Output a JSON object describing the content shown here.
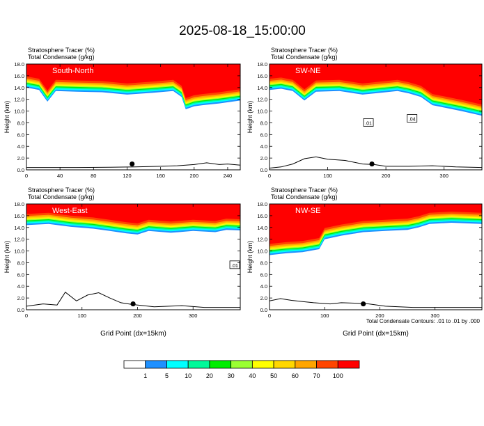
{
  "figure": {
    "title": "2025-08-18_15:00:00",
    "contour_note": "Total Condensate Contours: .01 to .01 by .000"
  },
  "colorbar": {
    "levels": [
      "1",
      "5",
      "10",
      "20",
      "30",
      "40",
      "50",
      "60",
      "70",
      "100"
    ],
    "colors": [
      "#ffffff",
      "#1e90ff",
      "#00ffff",
      "#00fa9a",
      "#00ee00",
      "#9aff32",
      "#ffff00",
      "#ffd700",
      "#ffa500",
      "#ff4500",
      "#ff0000"
    ]
  },
  "chart_data": [
    {
      "type": "contour",
      "label": "South-North",
      "title_line1": "Stratosphere Tracer   (%)",
      "title_line2": "Total Condensate   (g/kg)",
      "ylabel": "Height (km)",
      "xlabel": "",
      "xlim": [
        0,
        255
      ],
      "ylim": [
        0,
        18
      ],
      "xticks": [
        "0",
        "40",
        "80",
        "120",
        "160",
        "200",
        "240"
      ],
      "yticks": [
        "0.0",
        "2.0",
        "4.0",
        "6.0",
        "8.0",
        "10.0",
        "12.0",
        "14.0",
        "16.0",
        "18.0"
      ],
      "marker": {
        "x": 126,
        "y": 1.0
      },
      "tropopause": [
        [
          0,
          14.2
        ],
        [
          15,
          13.8
        ],
        [
          25,
          11.8
        ],
        [
          35,
          13.6
        ],
        [
          60,
          13.5
        ],
        [
          90,
          13.4
        ],
        [
          120,
          13.0
        ],
        [
          150,
          13.3
        ],
        [
          175,
          13.6
        ],
        [
          185,
          12.6
        ],
        [
          190,
          10.5
        ],
        [
          200,
          11.0
        ],
        [
          210,
          11.2
        ],
        [
          230,
          11.5
        ],
        [
          255,
          12.0
        ]
      ],
      "terrain": [
        [
          0,
          0.4
        ],
        [
          30,
          0.4
        ],
        [
          60,
          0.4
        ],
        [
          100,
          0.45
        ],
        [
          130,
          0.5
        ],
        [
          160,
          0.6
        ],
        [
          180,
          0.7
        ],
        [
          200,
          0.9
        ],
        [
          215,
          1.2
        ],
        [
          230,
          0.9
        ],
        [
          240,
          1.0
        ],
        [
          255,
          0.8
        ]
      ]
    },
    {
      "type": "contour",
      "label": "SW-NE",
      "title_line1": "Stratosphere Tracer   (%)",
      "title_line2": "Total Condensate   (g/kg)",
      "ylabel": "Height (km)",
      "xlabel": "",
      "xlim": [
        0,
        365
      ],
      "ylim": [
        0,
        18
      ],
      "xticks": [
        "0",
        "100",
        "200",
        "300"
      ],
      "yticks": [
        "0.0",
        "2.0",
        "4.0",
        "6.0",
        "8.0",
        "10.0",
        "12.0",
        "14.0",
        "16.0",
        "18.0"
      ],
      "marker": {
        "x": 176,
        "y": 1.0
      },
      "contour_labels": [
        {
          "text": ".01",
          "x": 170,
          "y": 8.0
        },
        {
          "text": ".04",
          "x": 245,
          "y": 8.7
        }
      ],
      "tropopause": [
        [
          0,
          13.8
        ],
        [
          20,
          14.0
        ],
        [
          40,
          13.6
        ],
        [
          60,
          12.0
        ],
        [
          80,
          13.5
        ],
        [
          120,
          13.6
        ],
        [
          160,
          13.0
        ],
        [
          190,
          13.3
        ],
        [
          220,
          13.6
        ],
        [
          240,
          13.2
        ],
        [
          260,
          12.6
        ],
        [
          280,
          11.2
        ],
        [
          300,
          10.8
        ],
        [
          330,
          10.2
        ],
        [
          365,
          9.4
        ]
      ],
      "terrain": [
        [
          0,
          0.3
        ],
        [
          20,
          0.5
        ],
        [
          40,
          1.0
        ],
        [
          60,
          1.9
        ],
        [
          80,
          2.2
        ],
        [
          100,
          1.8
        ],
        [
          130,
          1.6
        ],
        [
          160,
          1.0
        ],
        [
          180,
          0.9
        ],
        [
          200,
          0.6
        ],
        [
          240,
          0.6
        ],
        [
          280,
          0.7
        ],
        [
          320,
          0.5
        ],
        [
          365,
          0.4
        ]
      ]
    },
    {
      "type": "contour",
      "label": "West-East",
      "title_line1": "Stratosphere Tracer   (%)",
      "title_line2": "Total Condensate   (g/kg)",
      "ylabel": "Height (km)",
      "xlabel": "Grid Point (dx=15km)",
      "xlim": [
        0,
        385
      ],
      "ylim": [
        0,
        18
      ],
      "xticks": [
        "0",
        "100",
        "200",
        "300"
      ],
      "yticks": [
        "0.0",
        "2.0",
        "4.0",
        "6.0",
        "8.0",
        "10.0",
        "12.0",
        "14.0",
        "16.0",
        "18.0"
      ],
      "marker": {
        "x": 192,
        "y": 1.0
      },
      "contour_labels": [
        {
          "text": ".01",
          "x": 375,
          "y": 7.6
        }
      ],
      "tropopause": [
        [
          0,
          14.6
        ],
        [
          40,
          14.8
        ],
        [
          80,
          14.3
        ],
        [
          120,
          14.0
        ],
        [
          150,
          13.6
        ],
        [
          180,
          13.2
        ],
        [
          200,
          13.0
        ],
        [
          220,
          13.6
        ],
        [
          260,
          13.3
        ],
        [
          300,
          13.6
        ],
        [
          340,
          13.4
        ],
        [
          360,
          13.8
        ],
        [
          385,
          13.7
        ]
      ],
      "terrain": [
        [
          0,
          0.6
        ],
        [
          30,
          1.0
        ],
        [
          55,
          0.8
        ],
        [
          70,
          3.0
        ],
        [
          90,
          1.5
        ],
        [
          110,
          2.5
        ],
        [
          130,
          2.9
        ],
        [
          150,
          2.0
        ],
        [
          170,
          1.2
        ],
        [
          190,
          0.9
        ],
        [
          230,
          0.5
        ],
        [
          280,
          0.7
        ],
        [
          320,
          0.4
        ],
        [
          385,
          0.4
        ]
      ]
    },
    {
      "type": "contour",
      "label": "NW-SE",
      "title_line1": "Stratosphere Tracer   (%)",
      "title_line2": "Total Condensate   (g/kg)",
      "ylabel": "Height (km)",
      "xlabel": "Grid Point (dx=15km)",
      "xlim": [
        0,
        385
      ],
      "ylim": [
        0,
        18
      ],
      "xticks": [
        "0",
        "100",
        "200",
        "300"
      ],
      "yticks": [
        "0.0",
        "2.0",
        "4.0",
        "6.0",
        "8.0",
        "10.0",
        "12.0",
        "14.0",
        "16.0",
        "18.0"
      ],
      "marker": {
        "x": 170,
        "y": 1.0
      },
      "tropopause": [
        [
          0,
          9.5
        ],
        [
          30,
          9.8
        ],
        [
          60,
          10.0
        ],
        [
          90,
          10.5
        ],
        [
          100,
          12.2
        ],
        [
          130,
          12.8
        ],
        [
          170,
          13.4
        ],
        [
          210,
          13.6
        ],
        [
          250,
          13.8
        ],
        [
          270,
          14.2
        ],
        [
          290,
          14.8
        ],
        [
          330,
          15.0
        ],
        [
          385,
          14.8
        ]
      ],
      "terrain": [
        [
          0,
          1.5
        ],
        [
          20,
          1.9
        ],
        [
          40,
          1.6
        ],
        [
          60,
          1.4
        ],
        [
          80,
          1.2
        ],
        [
          110,
          1.0
        ],
        [
          130,
          1.2
        ],
        [
          160,
          1.1
        ],
        [
          180,
          1.0
        ],
        [
          210,
          0.6
        ],
        [
          260,
          0.4
        ],
        [
          320,
          0.4
        ],
        [
          385,
          0.4
        ]
      ]
    }
  ]
}
